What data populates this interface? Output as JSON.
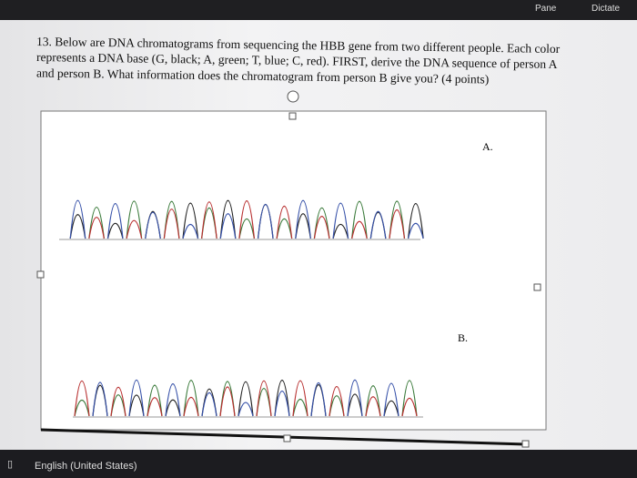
{
  "toolbar": {
    "buttons": [
      "Pane",
      "Dictate"
    ]
  },
  "question": {
    "lines": [
      "13. Below are DNA chromatograms from sequencing the HBB gene from two different people. Each color",
      "represents a DNA base  (G, black; A, green; T, blue; C, red). FIRST, derive the DNA sequence of person A",
      "and person B. What information does the chromatogram from person B give you?  (4 points)"
    ]
  },
  "figure": {
    "labels": [
      "A.",
      "B."
    ]
  },
  "status_bar": {
    "language": "English (United States)"
  }
}
